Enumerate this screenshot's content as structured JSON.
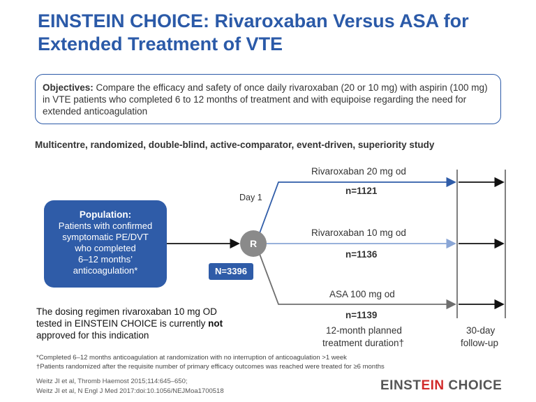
{
  "title": {
    "line1": "EINSTEIN CHOICE: Rivaroxaban Versus ASA for",
    "line2": "Extended Treatment of VTE"
  },
  "objectives": {
    "label": "Objectives:",
    "text": " Compare the efficacy and safety of once daily rivaroxaban (20 or 10 mg) with aspirin (100 mg) in VTE patients who completed 6 to 12 months of treatment and with equipoise regarding the need for extended anticoagulation"
  },
  "design": "Multicentre, randomized, double-blind, active-comparator, event-driven, superiority study",
  "population": {
    "title": "Population:",
    "lines": [
      "Patients with confirmed",
      "symptomatic PE/DVT",
      "who completed",
      "6–12 months’",
      "anticoagulation*"
    ]
  },
  "randomization": {
    "symbol": "R",
    "total": "N=3396",
    "day": "Day 1"
  },
  "arms": [
    {
      "name": "Rivaroxaban 20 mg od",
      "n": "n=1121",
      "color": "#2f5ca8"
    },
    {
      "name": "Rivaroxaban 10 mg od",
      "n": "n=1136",
      "color": "#8aa6d6"
    },
    {
      "name": "ASA 100 mg od",
      "n": "n=1139",
      "color": "#6f6f6f"
    }
  ],
  "periods": {
    "treatment_line1": "12-month planned",
    "treatment_line2": "treatment duration†",
    "followup_line1": "30-day",
    "followup_line2": "follow-up"
  },
  "note": {
    "part1": "The dosing regimen rivaroxaban 10 mg OD tested in EINSTEIN CHOICE is currently ",
    "bold": "not",
    "part2": " approved for this indication"
  },
  "footnotes": [
    "*Completed 6–12 months anticoagulation at randomization with no interruption of anticoagulation >1 week",
    "†Patients randomized after the requisite number of primary efficacy outcomes was reached were treated for ≥6 months"
  ],
  "references": [
    "Weitz JI et al, Thromb Haemost 2015;114:645–650;",
    "Weitz JI et al, N Engl J Med 2017:doi:10.1056/NEJMoa1700518"
  ],
  "logo": {
    "part1": "EINST",
    "part2": "EIN",
    "part3": " CHOICE"
  }
}
